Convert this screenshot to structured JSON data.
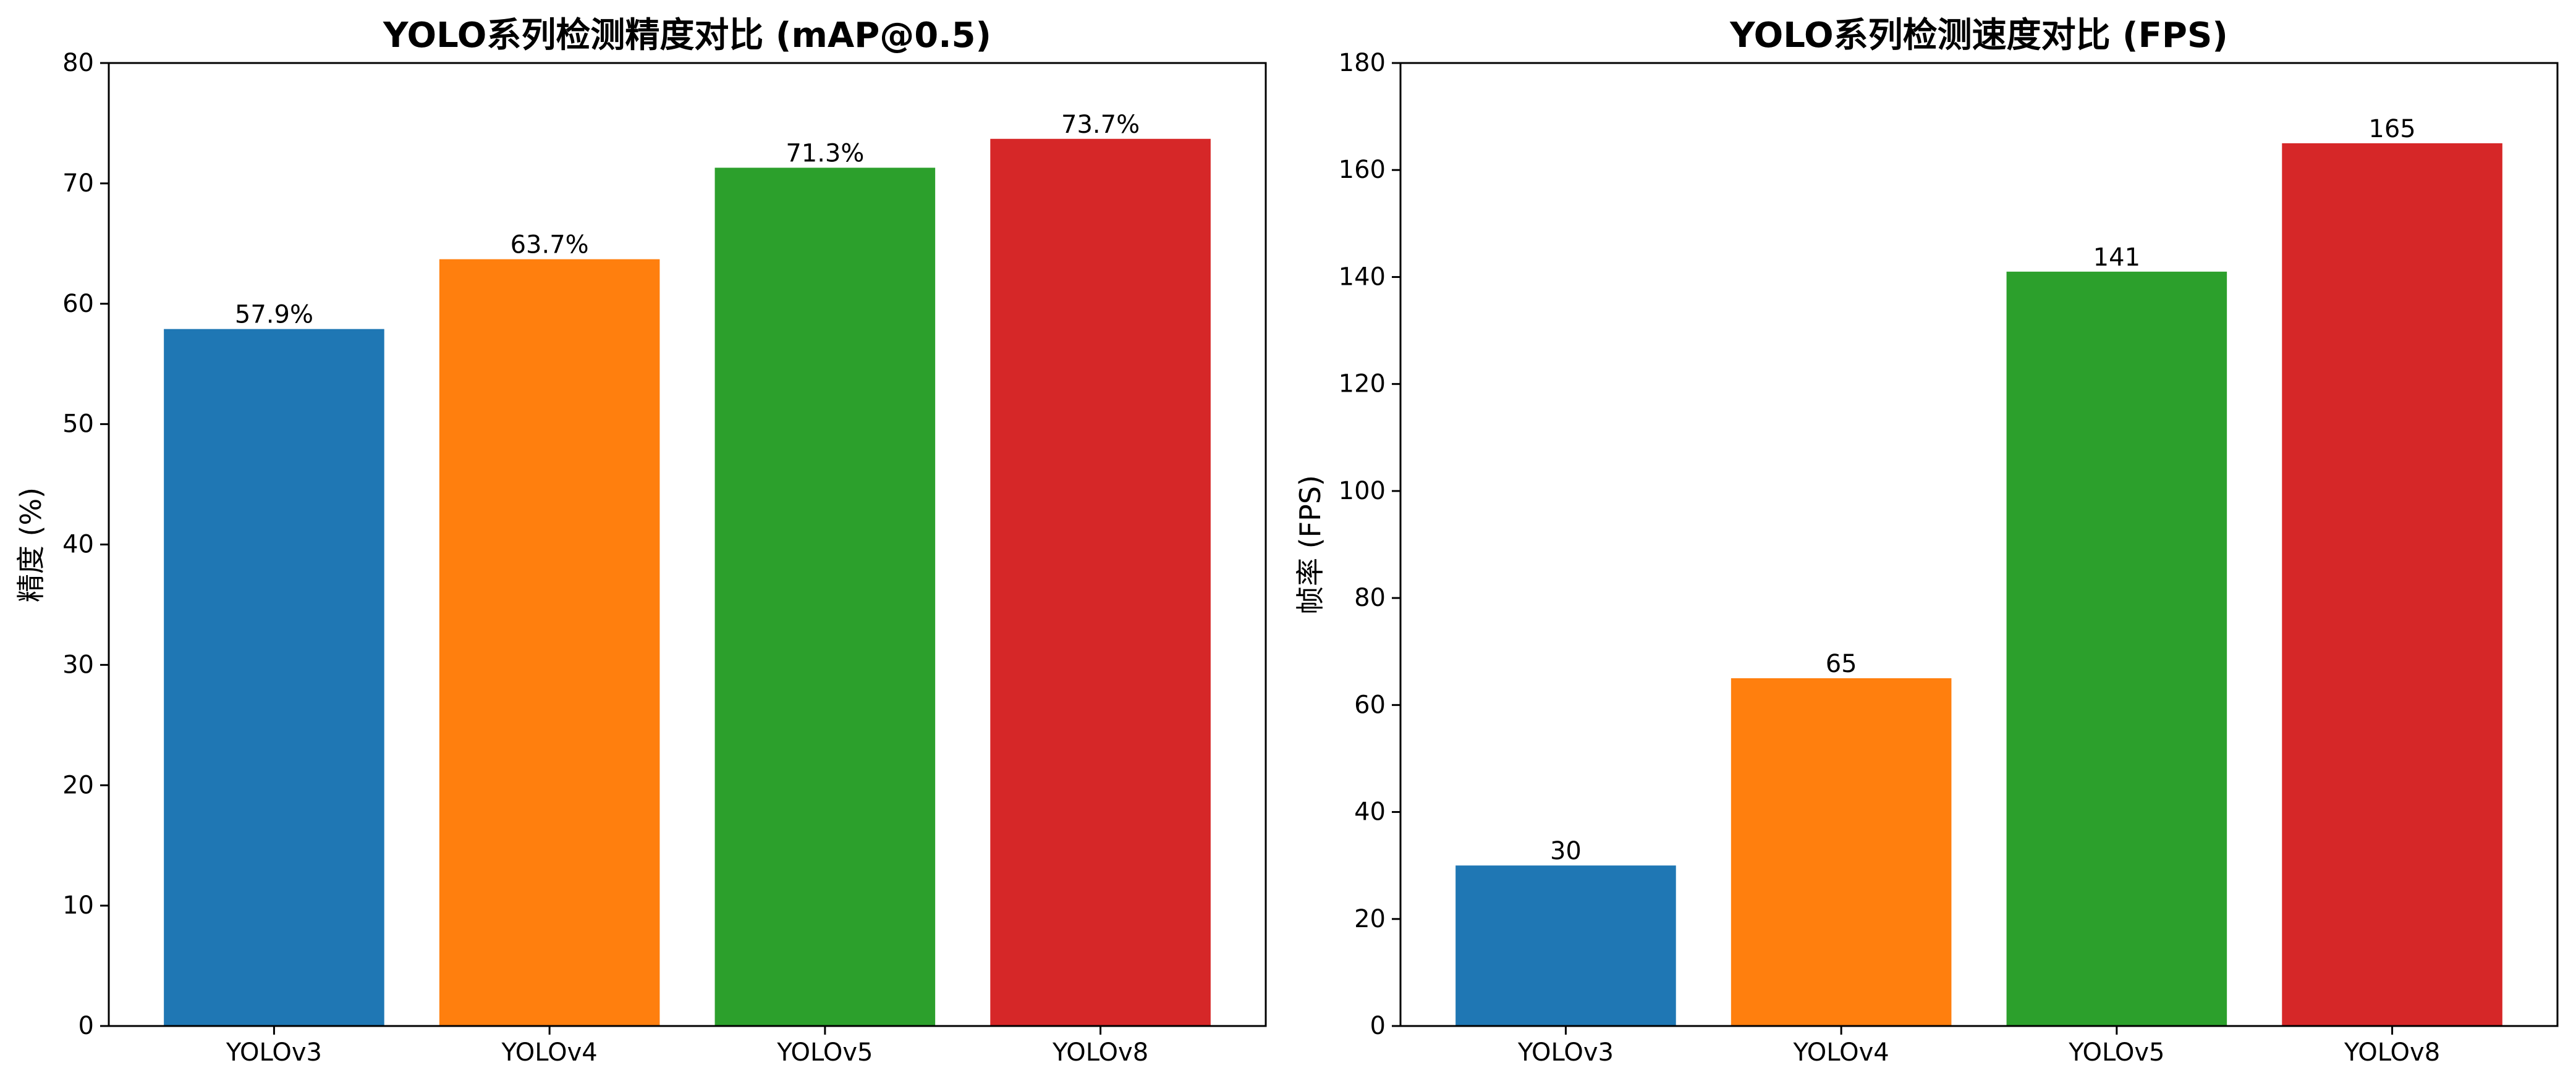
{
  "chart_data": [
    {
      "type": "bar",
      "title": "YOLO系列检测精度对比 (mAP@0.5)",
      "xlabel": "",
      "ylabel": "精度 (%)",
      "categories": [
        "YOLOv3",
        "YOLOv4",
        "YOLOv5",
        "YOLOv8"
      ],
      "values": [
        57.9,
        63.7,
        71.3,
        73.7
      ],
      "value_labels": [
        "57.9%",
        "63.7%",
        "71.3%",
        "73.7%"
      ],
      "colors": [
        "#1f77b4",
        "#ff7f0e",
        "#2ca02c",
        "#d62728"
      ],
      "ylim": [
        0,
        80
      ],
      "yticks": [
        0,
        10,
        20,
        30,
        40,
        50,
        60,
        70,
        80
      ],
      "grid": false,
      "legend": "none"
    },
    {
      "type": "bar",
      "title": "YOLO系列检测速度对比 (FPS)",
      "xlabel": "",
      "ylabel": "帧率 (FPS)",
      "categories": [
        "YOLOv3",
        "YOLOv4",
        "YOLOv5",
        "YOLOv8"
      ],
      "values": [
        30,
        65,
        141,
        165
      ],
      "value_labels": [
        "30",
        "65",
        "141",
        "165"
      ],
      "colors": [
        "#1f77b4",
        "#ff7f0e",
        "#2ca02c",
        "#d62728"
      ],
      "ylim": [
        0,
        180
      ],
      "yticks": [
        0,
        20,
        40,
        60,
        80,
        100,
        120,
        140,
        160,
        180
      ],
      "grid": false,
      "legend": "none"
    }
  ]
}
